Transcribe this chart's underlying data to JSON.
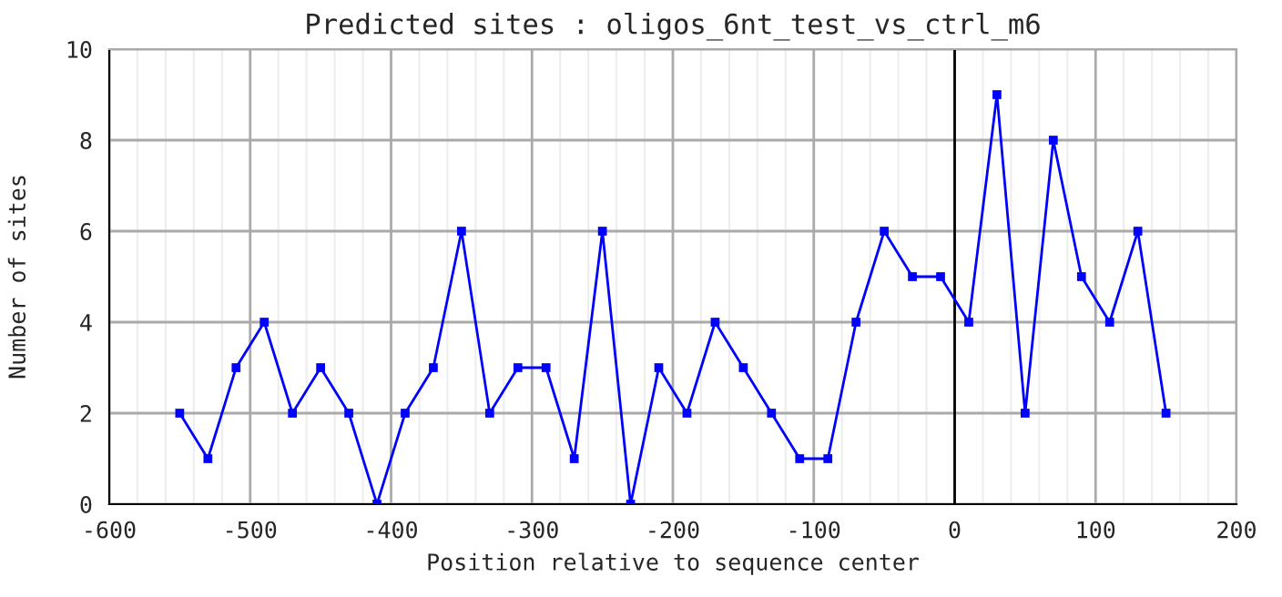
{
  "chart_data": {
    "type": "line",
    "title": "Predicted sites : oligos_6nt_test_vs_ctrl_m6",
    "xlabel": "Position relative to sequence center",
    "ylabel": "Number of sites",
    "x": [
      -550,
      -530,
      -510,
      -490,
      -470,
      -450,
      -430,
      -410,
      -390,
      -370,
      -350,
      -330,
      -310,
      -290,
      -270,
      -250,
      -230,
      -210,
      -190,
      -170,
      -150,
      -130,
      -110,
      -90,
      -70,
      -50,
      -30,
      -10,
      10,
      30,
      50,
      70,
      90,
      110,
      130,
      150
    ],
    "series": [
      {
        "color": "#0000ff",
        "values": [
          2,
          1,
          3,
          4,
          2,
          3,
          2,
          0,
          2,
          3,
          6,
          2,
          3,
          3,
          1,
          6,
          0,
          3,
          2,
          4,
          3,
          2,
          1,
          1,
          4,
          6,
          5,
          5,
          4,
          9,
          2,
          8,
          5,
          4,
          6,
          2
        ]
      }
    ],
    "xlim": [
      -600,
      200
    ],
    "xticks": [
      -600,
      -500,
      -400,
      -300,
      -200,
      -100,
      0,
      100,
      200
    ],
    "ylim": [
      0,
      10
    ],
    "yticks": [
      0,
      2,
      4,
      6,
      8,
      10
    ],
    "grid": true,
    "marker": "square",
    "line_style": "solid",
    "ref_lines": [
      {
        "axis": "x",
        "value": 0,
        "color": "#000000"
      }
    ]
  }
}
